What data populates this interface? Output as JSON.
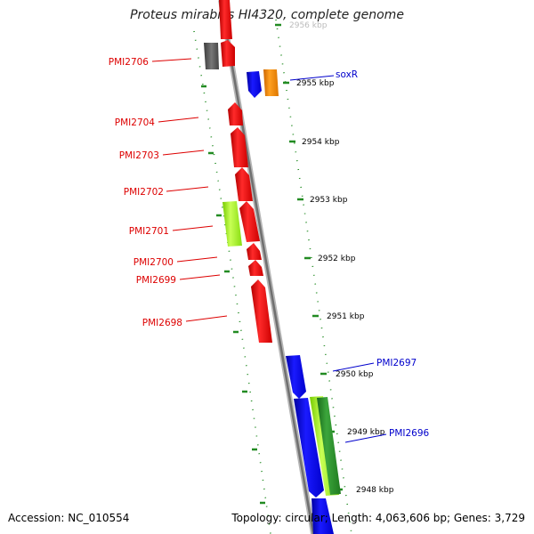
{
  "header": {
    "title": "Proteus mirabilis HI4320, complete genome"
  },
  "footer": {
    "accession": "Accession: NC_010554",
    "summary": "Topology: circular; Length: 4,063,606 bp; Genes: 3,729"
  },
  "colors": {
    "backbone": "#8c8c8c",
    "tick": "#228b22",
    "label_left": "#dd0000",
    "label_right": "#0000cc",
    "red": "#ff1a1a",
    "blue": "#1010ff",
    "gray": "#666666",
    "orange": "#ff8c00",
    "lightgreen": "#aaff33",
    "darkgreen": "#2e8b2e"
  },
  "scale_labels": [
    "2956 kbp",
    "2955 kbp",
    "2954 kbp",
    "2953 kbp",
    "2952 kbp",
    "2951 kbp",
    "2950 kbp",
    "2949 kbp",
    "2948 kbp"
  ],
  "genes_left": [
    "PMI2706",
    "PMI2704",
    "PMI2703",
    "PMI2702",
    "PMI2701",
    "PMI2700",
    "PMI2699",
    "PMI2698"
  ],
  "genes_right": [
    "soxR",
    "PMI2697",
    "PMI2696"
  ]
}
